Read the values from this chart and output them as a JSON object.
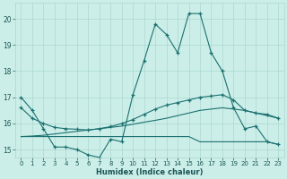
{
  "xlabel": "Humidex (Indice chaleur)",
  "xlim": [
    -0.5,
    23.5
  ],
  "ylim": [
    14.7,
    20.6
  ],
  "xticks": [
    0,
    1,
    2,
    3,
    4,
    5,
    6,
    7,
    8,
    9,
    10,
    11,
    12,
    13,
    14,
    15,
    16,
    17,
    18,
    19,
    20,
    21,
    22,
    23
  ],
  "yticks": [
    15,
    16,
    17,
    18,
    19,
    20
  ],
  "line_color": "#1a7070",
  "bg_color": "#cceee8",
  "grid_color": "#aad8d0",
  "line1_y": [
    17.0,
    16.5,
    15.8,
    15.1,
    15.1,
    15.0,
    14.8,
    14.7,
    15.4,
    15.3,
    17.1,
    18.4,
    19.8,
    19.4,
    18.7,
    20.2,
    20.2,
    18.7,
    18.0,
    16.6,
    15.8,
    15.9,
    15.3,
    15.2
  ],
  "line2_y": [
    16.6,
    16.2,
    16.0,
    15.85,
    15.8,
    15.78,
    15.75,
    15.8,
    15.88,
    16.0,
    16.15,
    16.35,
    16.55,
    16.7,
    16.8,
    16.9,
    17.0,
    17.05,
    17.1,
    16.9,
    16.5,
    16.4,
    16.35,
    16.2
  ],
  "line3_y": [
    15.5,
    15.52,
    15.55,
    15.6,
    15.65,
    15.7,
    15.75,
    15.8,
    15.85,
    15.9,
    15.97,
    16.05,
    16.12,
    16.2,
    16.3,
    16.4,
    16.5,
    16.55,
    16.6,
    16.55,
    16.5,
    16.4,
    16.3,
    16.2
  ],
  "line4_y": [
    15.5,
    15.5,
    15.5,
    15.5,
    15.5,
    15.5,
    15.5,
    15.5,
    15.5,
    15.5,
    15.5,
    15.5,
    15.5,
    15.5,
    15.5,
    15.5,
    15.3,
    15.3,
    15.3,
    15.3,
    15.3,
    15.3,
    15.3,
    15.2
  ]
}
